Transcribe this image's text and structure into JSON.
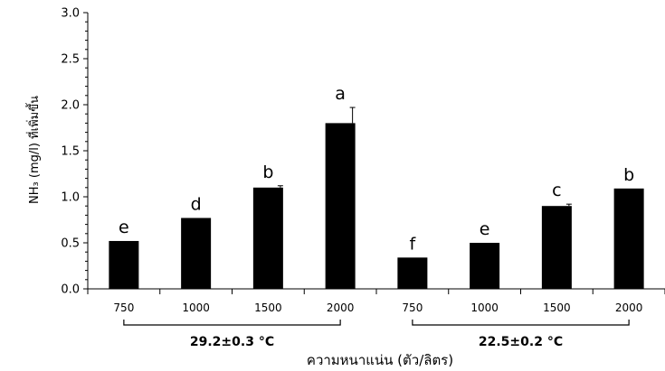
{
  "chart_data": {
    "type": "bar",
    "xlabel": "ความหนาแน่น (ตัว/ลิตร)",
    "ylabel": "NH₃ (mg/l) ที่เพิ่มขึ้น",
    "ylim": [
      0,
      3.0
    ],
    "yticks": [
      "0.0",
      "0.5",
      "1.0",
      "1.5",
      "2.0",
      "2.5",
      "3.0"
    ],
    "grid": false,
    "bar_color": "#000000",
    "categories": [
      "750",
      "1000",
      "1500",
      "2000",
      "750",
      "1000",
      "1500",
      "2000"
    ],
    "values": [
      0.52,
      0.77,
      1.1,
      1.8,
      0.34,
      0.5,
      0.9,
      1.09
    ],
    "errors": [
      0.0,
      0.0,
      0.02,
      0.17,
      0.0,
      0.0,
      0.02,
      0.0
    ],
    "significance": [
      "e",
      "d",
      "b",
      "a",
      "f",
      "e",
      "c",
      "b"
    ],
    "groups": [
      {
        "label": "29.2±0.3 °C",
        "start": 0,
        "end": 3
      },
      {
        "label": "22.5±0.2 °C",
        "start": 4,
        "end": 7
      }
    ]
  }
}
